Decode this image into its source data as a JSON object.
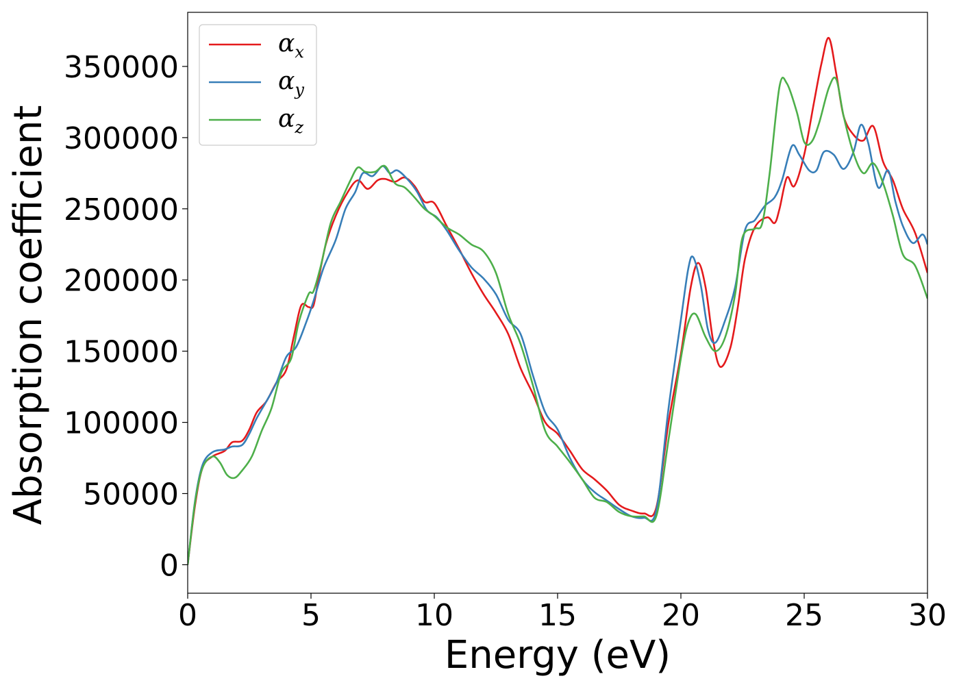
{
  "chart_data": {
    "type": "line",
    "title": "",
    "xlabel": "Energy (eV)",
    "ylabel": "Absorption coefficient",
    "xlim": [
      0,
      30
    ],
    "ylim": [
      -20000,
      388000
    ],
    "xticks": [
      0,
      5,
      10,
      15,
      20,
      25,
      30
    ],
    "yticks": [
      0,
      50000,
      100000,
      150000,
      200000,
      250000,
      300000,
      350000
    ],
    "grid": false,
    "legend_position": "top-left",
    "series": [
      {
        "name": "α_x",
        "base": "α",
        "sub": "x",
        "color": "#e41a1c",
        "points": [
          [
            0,
            0
          ],
          [
            0.3,
            42000
          ],
          [
            0.6,
            68000
          ],
          [
            1.0,
            76000
          ],
          [
            1.5,
            80000
          ],
          [
            1.8,
            86000
          ],
          [
            2.2,
            87000
          ],
          [
            2.5,
            95000
          ],
          [
            2.8,
            107000
          ],
          [
            3.2,
            115000
          ],
          [
            3.6,
            128000
          ],
          [
            4.0,
            137000
          ],
          [
            4.3,
            160000
          ],
          [
            4.6,
            182000
          ],
          [
            4.9,
            181000
          ],
          [
            5.1,
            182000
          ],
          [
            5.3,
            200000
          ],
          [
            5.6,
            225000
          ],
          [
            6.0,
            245000
          ],
          [
            6.5,
            262000
          ],
          [
            6.9,
            270000
          ],
          [
            7.3,
            264000
          ],
          [
            7.7,
            270000
          ],
          [
            8.0,
            271000
          ],
          [
            8.4,
            269000
          ],
          [
            8.8,
            272000
          ],
          [
            9.2,
            266000
          ],
          [
            9.6,
            255000
          ],
          [
            10.0,
            254000
          ],
          [
            10.5,
            238000
          ],
          [
            11.0,
            222000
          ],
          [
            11.5,
            205000
          ],
          [
            12.0,
            190000
          ],
          [
            12.5,
            177000
          ],
          [
            13.0,
            162000
          ],
          [
            13.5,
            138000
          ],
          [
            14.0,
            120000
          ],
          [
            14.5,
            100000
          ],
          [
            15.0,
            92000
          ],
          [
            15.5,
            80000
          ],
          [
            16.0,
            67000
          ],
          [
            16.5,
            60000
          ],
          [
            17.0,
            52000
          ],
          [
            17.5,
            42000
          ],
          [
            18.0,
            38000
          ],
          [
            18.5,
            36000
          ],
          [
            19.0,
            40000
          ],
          [
            19.5,
            100000
          ],
          [
            20.0,
            148000
          ],
          [
            20.4,
            195000
          ],
          [
            20.7,
            212000
          ],
          [
            21.0,
            195000
          ],
          [
            21.3,
            158000
          ],
          [
            21.6,
            139000
          ],
          [
            22.0,
            152000
          ],
          [
            22.3,
            180000
          ],
          [
            22.6,
            215000
          ],
          [
            23.0,
            237000
          ],
          [
            23.5,
            244000
          ],
          [
            23.8,
            240000
          ],
          [
            24.0,
            250000
          ],
          [
            24.3,
            272000
          ],
          [
            24.6,
            266000
          ],
          [
            25.0,
            288000
          ],
          [
            25.4,
            325000
          ],
          [
            25.7,
            352000
          ],
          [
            26.0,
            370000
          ],
          [
            26.3,
            345000
          ],
          [
            26.6,
            315000
          ],
          [
            27.0,
            302000
          ],
          [
            27.4,
            298000
          ],
          [
            27.8,
            308000
          ],
          [
            28.2,
            283000
          ],
          [
            28.6,
            270000
          ],
          [
            29.0,
            250000
          ],
          [
            29.5,
            233000
          ],
          [
            30.0,
            205000
          ]
        ]
      },
      {
        "name": "α_y",
        "base": "α",
        "sub": "y",
        "color": "#377eb8",
        "points": [
          [
            0,
            0
          ],
          [
            0.3,
            45000
          ],
          [
            0.6,
            70000
          ],
          [
            1.0,
            79000
          ],
          [
            1.5,
            81000
          ],
          [
            1.8,
            83000
          ],
          [
            2.2,
            84000
          ],
          [
            2.5,
            92000
          ],
          [
            2.8,
            103000
          ],
          [
            3.2,
            115000
          ],
          [
            3.6,
            128000
          ],
          [
            4.0,
            146000
          ],
          [
            4.4,
            153000
          ],
          [
            4.8,
            170000
          ],
          [
            5.1,
            185000
          ],
          [
            5.5,
            208000
          ],
          [
            6.0,
            228000
          ],
          [
            6.4,
            250000
          ],
          [
            6.8,
            262000
          ],
          [
            7.1,
            275000
          ],
          [
            7.5,
            273000
          ],
          [
            7.9,
            280000
          ],
          [
            8.2,
            275000
          ],
          [
            8.5,
            277000
          ],
          [
            8.9,
            271000
          ],
          [
            9.3,
            262000
          ],
          [
            9.7,
            249000
          ],
          [
            10.1,
            244000
          ],
          [
            10.5,
            235000
          ],
          [
            11.0,
            221000
          ],
          [
            11.5,
            209000
          ],
          [
            12.0,
            201000
          ],
          [
            12.5,
            190000
          ],
          [
            13.0,
            172000
          ],
          [
            13.5,
            162000
          ],
          [
            14.0,
            133000
          ],
          [
            14.5,
            107000
          ],
          [
            15.0,
            95000
          ],
          [
            15.5,
            75000
          ],
          [
            16.0,
            60000
          ],
          [
            16.5,
            51000
          ],
          [
            17.0,
            45000
          ],
          [
            17.5,
            39000
          ],
          [
            18.0,
            34000
          ],
          [
            18.5,
            33000
          ],
          [
            19.0,
            38000
          ],
          [
            19.5,
            110000
          ],
          [
            20.0,
            172000
          ],
          [
            20.3,
            208000
          ],
          [
            20.5,
            216000
          ],
          [
            20.8,
            197000
          ],
          [
            21.1,
            165000
          ],
          [
            21.4,
            156000
          ],
          [
            21.8,
            172000
          ],
          [
            22.2,
            195000
          ],
          [
            22.6,
            235000
          ],
          [
            23.0,
            242000
          ],
          [
            23.4,
            252000
          ],
          [
            23.8,
            258000
          ],
          [
            24.1,
            270000
          ],
          [
            24.5,
            294000
          ],
          [
            24.8,
            288000
          ],
          [
            25.2,
            277000
          ],
          [
            25.5,
            277000
          ],
          [
            25.8,
            290000
          ],
          [
            26.2,
            288000
          ],
          [
            26.6,
            278000
          ],
          [
            27.0,
            290000
          ],
          [
            27.3,
            309000
          ],
          [
            27.6,
            296000
          ],
          [
            28.0,
            265000
          ],
          [
            28.4,
            277000
          ],
          [
            28.7,
            255000
          ],
          [
            29.0,
            238000
          ],
          [
            29.4,
            226000
          ],
          [
            29.8,
            232000
          ],
          [
            30.0,
            225000
          ]
        ]
      },
      {
        "name": "α_z",
        "base": "α",
        "sub": "z",
        "color": "#4daf4a",
        "points": [
          [
            0,
            0
          ],
          [
            0.3,
            44000
          ],
          [
            0.6,
            68000
          ],
          [
            1.0,
            76000
          ],
          [
            1.3,
            72000
          ],
          [
            1.6,
            63000
          ],
          [
            1.9,
            61000
          ],
          [
            2.2,
            66000
          ],
          [
            2.6,
            76000
          ],
          [
            3.0,
            94000
          ],
          [
            3.4,
            110000
          ],
          [
            3.8,
            135000
          ],
          [
            4.2,
            145000
          ],
          [
            4.5,
            170000
          ],
          [
            4.9,
            190000
          ],
          [
            5.1,
            192000
          ],
          [
            5.4,
            210000
          ],
          [
            5.8,
            240000
          ],
          [
            6.2,
            255000
          ],
          [
            6.6,
            270000
          ],
          [
            6.9,
            279000
          ],
          [
            7.2,
            276000
          ],
          [
            7.6,
            276000
          ],
          [
            8.0,
            280000
          ],
          [
            8.4,
            268000
          ],
          [
            8.8,
            265000
          ],
          [
            9.2,
            258000
          ],
          [
            9.6,
            250000
          ],
          [
            10.0,
            245000
          ],
          [
            10.5,
            237000
          ],
          [
            11.0,
            232000
          ],
          [
            11.5,
            225000
          ],
          [
            12.0,
            220000
          ],
          [
            12.5,
            205000
          ],
          [
            13.0,
            176000
          ],
          [
            13.5,
            155000
          ],
          [
            14.0,
            126000
          ],
          [
            14.5,
            94000
          ],
          [
            15.0,
            83000
          ],
          [
            15.5,
            72000
          ],
          [
            16.0,
            60000
          ],
          [
            16.5,
            47000
          ],
          [
            17.0,
            44000
          ],
          [
            17.5,
            37000
          ],
          [
            18.0,
            34000
          ],
          [
            18.5,
            34000
          ],
          [
            19.0,
            34000
          ],
          [
            19.5,
            88000
          ],
          [
            20.0,
            145000
          ],
          [
            20.3,
            170000
          ],
          [
            20.6,
            176000
          ],
          [
            21.0,
            160000
          ],
          [
            21.4,
            150000
          ],
          [
            21.8,
            160000
          ],
          [
            22.2,
            190000
          ],
          [
            22.5,
            230000
          ],
          [
            23.0,
            236000
          ],
          [
            23.3,
            240000
          ],
          [
            23.6,
            275000
          ],
          [
            24.0,
            336000
          ],
          [
            24.3,
            338000
          ],
          [
            24.7,
            318000
          ],
          [
            25.0,
            297000
          ],
          [
            25.3,
            297000
          ],
          [
            25.6,
            310000
          ],
          [
            26.0,
            335000
          ],
          [
            26.3,
            341000
          ],
          [
            26.6,
            315000
          ],
          [
            27.0,
            289000
          ],
          [
            27.4,
            275000
          ],
          [
            27.8,
            282000
          ],
          [
            28.2,
            268000
          ],
          [
            28.6,
            245000
          ],
          [
            29.0,
            218000
          ],
          [
            29.5,
            210000
          ],
          [
            30.0,
            187000
          ]
        ]
      }
    ]
  }
}
